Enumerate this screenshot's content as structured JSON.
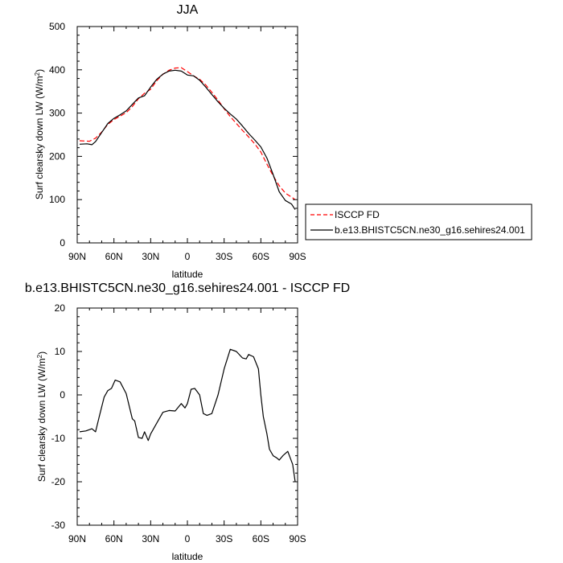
{
  "chart_data": [
    {
      "type": "line",
      "title": "JJA",
      "xlabel": "latitude",
      "ylabel_main": "Surf clearsky down LW (W/m",
      "ylabel_sup": "2",
      "ylabel_tail": ")",
      "xlim": [
        90,
        -90
      ],
      "ylim": [
        0,
        500
      ],
      "xticks": [
        90,
        60,
        30,
        0,
        -30,
        -60,
        -90
      ],
      "xtick_labels": [
        "90N",
        "60N",
        "30N",
        "0",
        "30S",
        "60S",
        "90S"
      ],
      "yticks": [
        0,
        100,
        200,
        300,
        400,
        500
      ],
      "ytick_labels": [
        "0",
        "100",
        "200",
        "300",
        "400",
        "500"
      ],
      "legend": {
        "placement": "right",
        "entries": [
          "ISCCP FD",
          "b.e13.BHISTC5CN.ne30_g16.sehires24.001"
        ]
      },
      "series": [
        {
          "name": "ISCCP FD",
          "style": "dashed",
          "color": "#ff0000",
          "x": [
            88,
            80,
            75,
            70,
            65,
            60,
            55,
            50,
            45,
            40,
            35,
            30,
            25,
            20,
            15,
            10,
            5,
            0,
            -5,
            -10,
            -15,
            -20,
            -25,
            -30,
            -35,
            -40,
            -45,
            -50,
            -55,
            -60,
            -65,
            -70,
            -75,
            -80,
            -85,
            -88
          ],
          "y": [
            236,
            235,
            242,
            256,
            274,
            285,
            293,
            301,
            315,
            333,
            346,
            355,
            375,
            390,
            399,
            404,
            405,
            396,
            386,
            378,
            365,
            348,
            330,
            310,
            292,
            276,
            260,
            245,
            229,
            210,
            182,
            155,
            132,
            115,
            106,
            100
          ]
        },
        {
          "name": "b.e13.BHISTC5CN.ne30_g16.sehires24.001",
          "style": "solid",
          "color": "#000000",
          "x": [
            88,
            82,
            78,
            75,
            70,
            65,
            60,
            55,
            50,
            45,
            40,
            35,
            30,
            25,
            20,
            15,
            10,
            5,
            0,
            -5,
            -10,
            -15,
            -20,
            -25,
            -30,
            -35,
            -40,
            -45,
            -50,
            -55,
            -60,
            -65,
            -70,
            -75,
            -80,
            -85,
            -88
          ],
          "y": [
            228,
            229,
            227,
            234,
            255,
            276,
            288,
            296,
            305,
            320,
            335,
            340,
            360,
            378,
            390,
            397,
            399,
            397,
            388,
            386,
            376,
            360,
            343,
            326,
            311,
            298,
            286,
            270,
            253,
            238,
            222,
            196,
            158,
            118,
            98,
            90,
            77
          ]
        }
      ]
    },
    {
      "type": "line",
      "title": "b.e13.BHISTC5CN.ne30_g16.sehires24.001 - ISCCP FD",
      "xlabel": "latitude",
      "ylabel_main": "Surf clearsky down LW (W/m",
      "ylabel_sup": "2",
      "ylabel_tail": ")",
      "xlim": [
        90,
        -90
      ],
      "ylim": [
        -30,
        20
      ],
      "xticks": [
        90,
        60,
        30,
        0,
        -30,
        -60,
        -90
      ],
      "xtick_labels": [
        "90N",
        "60N",
        "30N",
        "0",
        "30S",
        "60S",
        "90S"
      ],
      "yticks": [
        -30,
        -20,
        -10,
        0,
        10,
        20
      ],
      "ytick_labels": [
        "-30",
        "-20",
        "-10",
        "0",
        "10",
        "20"
      ],
      "series": [
        {
          "style": "solid",
          "color": "#000000",
          "x": [
            88,
            83,
            78,
            75,
            72,
            68,
            65,
            62,
            59,
            55,
            50,
            45,
            43,
            40,
            37,
            35,
            32,
            30,
            25,
            20,
            15,
            10,
            5,
            2,
            0,
            -3,
            -6,
            -10,
            -13,
            -16,
            -20,
            -25,
            -30,
            -35,
            -40,
            -45,
            -48,
            -50,
            -54,
            -58,
            -60,
            -62,
            -65,
            -67,
            -70,
            -73,
            -75,
            -78,
            -82,
            -86,
            -88
          ],
          "y": [
            -8.5,
            -8.3,
            -7.8,
            -8.5,
            -5.0,
            -0.5,
            1.0,
            1.5,
            3.4,
            3.0,
            0.3,
            -5.5,
            -6.0,
            -9.8,
            -10.0,
            -8.5,
            -10.5,
            -9.0,
            -6.5,
            -4.0,
            -3.6,
            -3.7,
            -2.0,
            -3.0,
            -2.0,
            1.3,
            1.5,
            0.0,
            -4.3,
            -4.7,
            -4.3,
            0.0,
            6.0,
            10.5,
            10.0,
            8.5,
            8.3,
            9.3,
            8.8,
            6.0,
            0.0,
            -5.0,
            -9.0,
            -12.5,
            -14.0,
            -14.5,
            -15.0,
            -14.0,
            -13.0,
            -16.0,
            -20.0
          ]
        }
      ]
    }
  ]
}
